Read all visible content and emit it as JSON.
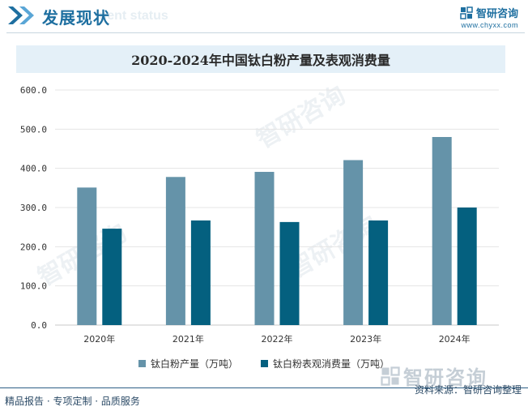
{
  "header": {
    "title": "发展现状",
    "ghost_text": "ment status"
  },
  "brand": {
    "name": "智研咨询",
    "url": "www.chyxx.com"
  },
  "watermark": {
    "brand": "智研咨询"
  },
  "chart_data": {
    "type": "bar",
    "title": "2020-2024年中国钛白粉产量及表观消费量",
    "categories": [
      "2020年",
      "2021年",
      "2022年",
      "2023年",
      "2024年"
    ],
    "series": [
      {
        "name": "钛白粉产量（万吨）",
        "color": "#6593a9",
        "values": [
          351,
          378,
          391,
          421,
          480
        ]
      },
      {
        "name": "钛白粉表观消费量（万吨）",
        "color": "#04607f",
        "values": [
          246,
          267,
          263,
          267,
          300
        ]
      }
    ],
    "y_ticks": [
      "0.0",
      "100.0",
      "200.0",
      "300.0",
      "400.0",
      "500.0",
      "600.0"
    ],
    "ylim": [
      0,
      600
    ],
    "grid": true,
    "legend_position": "bottom"
  },
  "footer": {
    "tagline": "精品报告 · 专项定制 · 品质服务",
    "source": "资料来源：智研咨询整理"
  }
}
